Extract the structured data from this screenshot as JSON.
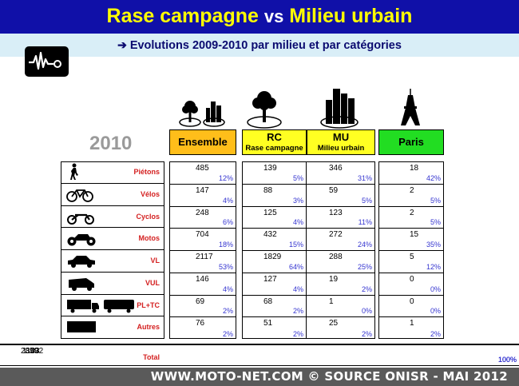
{
  "header": {
    "title_a": "Rase campagne",
    "title_vs": "vs",
    "title_b": "Milieu urbain",
    "subtitle": "Evolutions 2009-2010 par milieu et par catégories"
  },
  "year": "2010",
  "columns": {
    "ensemble": {
      "label": "Ensemble"
    },
    "rc": {
      "label": "RC",
      "sub": "Rase campagne"
    },
    "mu": {
      "label": "MU",
      "sub": "Milieu urbain"
    },
    "paris": {
      "label": "Paris"
    }
  },
  "rows": [
    {
      "label": "Piétons",
      "icon": "pedestrian-icon",
      "ens": [
        "485",
        "12%"
      ],
      "rc": [
        "139",
        "5%"
      ],
      "mu": [
        "346",
        "31%"
      ],
      "paris": [
        "18",
        "42%"
      ]
    },
    {
      "label": "Vélos",
      "icon": "bicycle-icon",
      "ens": [
        "147",
        "4%"
      ],
      "rc": [
        "88",
        "3%"
      ],
      "mu": [
        "59",
        "5%"
      ],
      "paris": [
        "2",
        "5%"
      ]
    },
    {
      "label": "Cyclos",
      "icon": "moped-icon",
      "ens": [
        "248",
        "6%"
      ],
      "rc": [
        "125",
        "4%"
      ],
      "mu": [
        "123",
        "11%"
      ],
      "paris": [
        "2",
        "5%"
      ]
    },
    {
      "label": "Motos",
      "icon": "motorcycle-icon",
      "ens": [
        "704",
        "18%"
      ],
      "rc": [
        "432",
        "15%"
      ],
      "mu": [
        "272",
        "24%"
      ],
      "paris": [
        "15",
        "35%"
      ]
    },
    {
      "label": "VL",
      "icon": "car-icon",
      "ens": [
        "2117",
        "53%"
      ],
      "rc": [
        "1829",
        "64%"
      ],
      "mu": [
        "288",
        "25%"
      ],
      "paris": [
        "5",
        "12%"
      ]
    },
    {
      "label": "VUL",
      "icon": "van-icon",
      "ens": [
        "146",
        "4%"
      ],
      "rc": [
        "127",
        "4%"
      ],
      "mu": [
        "19",
        "2%"
      ],
      "paris": [
        "0",
        "0%"
      ]
    },
    {
      "label": "PL+TC",
      "icon": "truck-bus-icon",
      "ens": [
        "69",
        "2%"
      ],
      "rc": [
        "68",
        "2%"
      ],
      "mu": [
        "1",
        "0%"
      ],
      "paris": [
        "0",
        "0%"
      ]
    },
    {
      "label": "Autres",
      "icon": "other-block-icon",
      "ens": [
        "76",
        "2%"
      ],
      "rc": [
        "51",
        "2%"
      ],
      "mu": [
        "25",
        "2%"
      ],
      "paris": [
        "1",
        "2%"
      ]
    }
  ],
  "total": {
    "label": "Total",
    "ens": [
      "3992",
      "100%"
    ],
    "rc": [
      "2859",
      "100%"
    ],
    "mu": [
      "1133",
      "100%"
    ],
    "paris": [
      "43",
      "100%"
    ]
  },
  "footer": "WWW.MOTO-NET.COM © SOURCE ONISR - MAI 2012",
  "colors": {
    "title_band": "#1010a8",
    "title_text": "#ffff00",
    "ensemble": "#ffbe1a",
    "rc_mu": "#ffff22",
    "paris": "#22dd22",
    "category_label": "#d42020",
    "percent": "#3535d0"
  }
}
